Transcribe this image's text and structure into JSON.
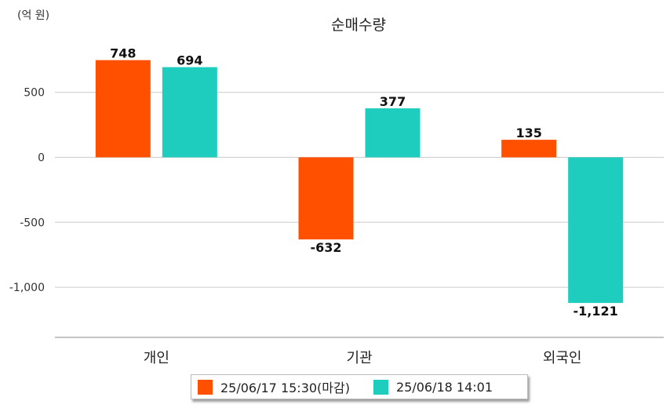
{
  "chart_data": {
    "type": "bar",
    "title": "순매수량",
    "unit_label": "(억 원)",
    "categories": [
      "개인",
      "기관",
      "외국인"
    ],
    "series": [
      {
        "name": "25/06/17 15:30(마감)",
        "color": "#FF5000",
        "values": [
          748,
          -632,
          135
        ]
      },
      {
        "name": "25/06/18 14:01",
        "color": "#1ECDBD",
        "values": [
          694,
          377,
          -1121
        ]
      }
    ],
    "data_labels": [
      [
        "748",
        "-632",
        "135"
      ],
      [
        "694",
        "377",
        "-1,121"
      ]
    ],
    "yticks": [
      500,
      0,
      -500,
      -1000
    ],
    "ytick_labels": [
      "500",
      "0",
      "-500",
      "-1,000"
    ],
    "ylim": [
      -1400,
      900
    ],
    "grid": true,
    "legend": "bottom"
  }
}
